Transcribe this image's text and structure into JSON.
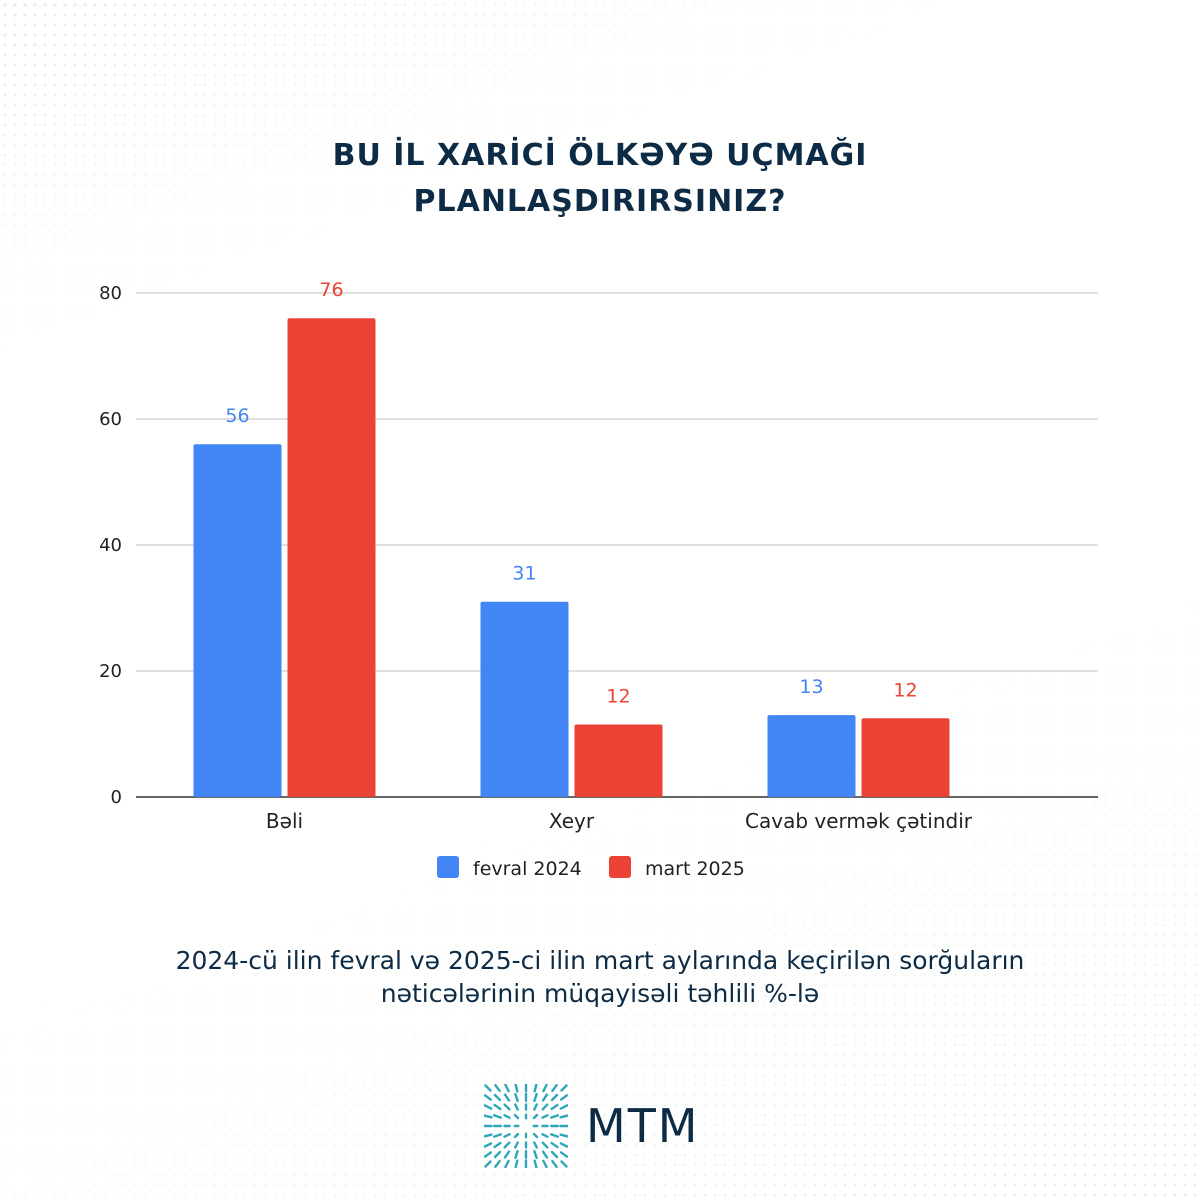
{
  "title_lines": [
    "BU İL XARİCİ ÖLKƏYƏ UÇMAĞI",
    "PLANLAŞDIRIRSINIZ?"
  ],
  "subtitle_lines": [
    "2024-cü ilin fevral və 2025-ci ilin mart aylarında keçirilən sorğuların",
    "nəticələrinin müqayisəli təhlili %-lə"
  ],
  "logo": {
    "text": "MTM",
    "icon": "mtm-logo-icon",
    "color": "#2fa7b8"
  },
  "chart_data": {
    "type": "bar",
    "categories": [
      "Bəli",
      "Xeyr",
      "Cavab vermək çətindir"
    ],
    "series": [
      {
        "name": "fevral 2024",
        "color": "#4285f4",
        "values": [
          56,
          31,
          13
        ],
        "labels": [
          "56",
          "31",
          "13"
        ]
      },
      {
        "name": "mart 2025",
        "color": "#ea4335",
        "values": [
          76,
          11.5,
          12.5
        ],
        "labels": [
          "76",
          "12",
          "12"
        ]
      }
    ],
    "ylim": [
      0,
      80
    ],
    "yticks": [
      0,
      20,
      40,
      60,
      80
    ],
    "grid": true,
    "legend": "bottom",
    "xlabel": "",
    "ylabel": ""
  }
}
